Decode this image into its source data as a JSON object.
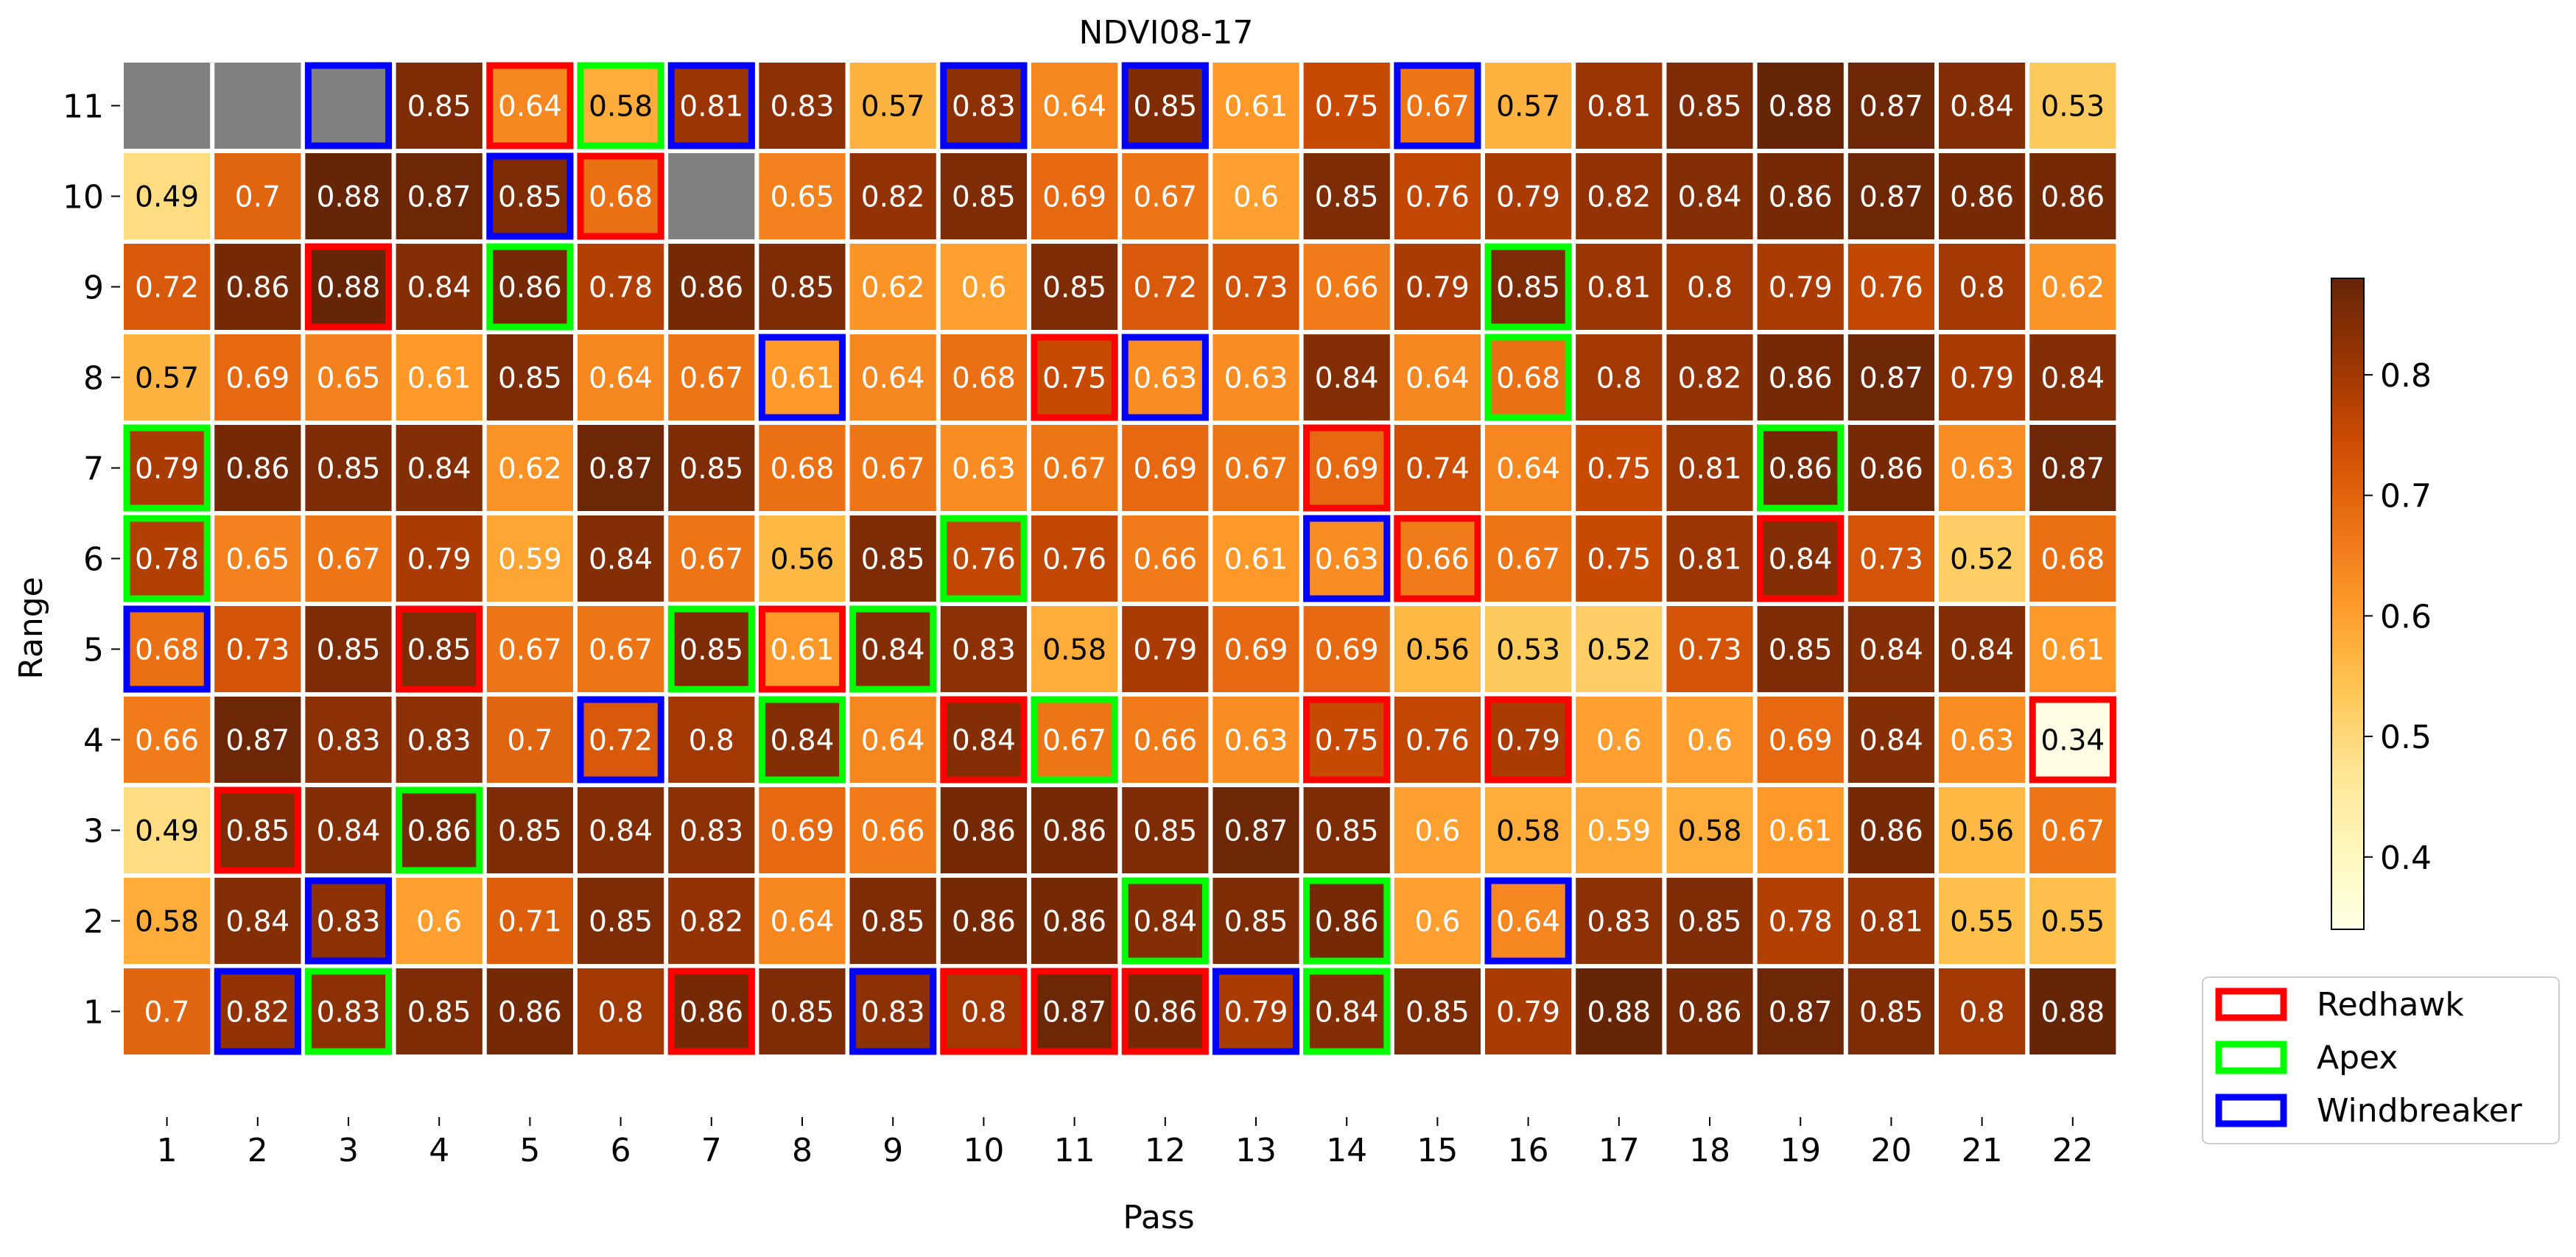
{
  "chart_data": {
    "type": "heatmap",
    "title": "NDVI08-17",
    "xlabel": "Pass",
    "ylabel": "Range",
    "x_ticks": [
      "1",
      "2",
      "3",
      "4",
      "5",
      "6",
      "7",
      "8",
      "9",
      "10",
      "11",
      "12",
      "13",
      "14",
      "15",
      "16",
      "17",
      "18",
      "19",
      "20",
      "21",
      "22"
    ],
    "y_ticks": [
      "1",
      "2",
      "3",
      "4",
      "5",
      "6",
      "7",
      "8",
      "9",
      "10",
      "11"
    ],
    "colorbar": {
      "ticks": [
        "0.4",
        "0.5",
        "0.6",
        "0.7",
        "0.8"
      ],
      "tick_values": [
        0.4,
        0.5,
        0.6,
        0.7,
        0.8
      ],
      "range": [
        0.34,
        0.88
      ],
      "colormap": "YlOrBr"
    },
    "missing_color": "#808080",
    "rows": [
      {
        "range": "11",
        "values": [
          null,
          null,
          null,
          0.85,
          0.64,
          0.58,
          0.81,
          0.83,
          0.57,
          0.83,
          0.64,
          0.85,
          0.61,
          0.75,
          0.67,
          0.57,
          0.81,
          0.85,
          0.88,
          0.87,
          0.84,
          0.53
        ],
        "labels": [
          "",
          "",
          "",
          "0.85",
          "0.64",
          "0.58",
          "0.81",
          "0.83",
          "0.57",
          "0.83",
          "0.64",
          "0.85",
          "0.61",
          "0.75",
          "0.67",
          "0.57",
          "0.81",
          "0.85",
          "0.88",
          "0.87",
          "0.84",
          "0.53"
        ]
      },
      {
        "range": "10",
        "values": [
          0.49,
          0.7,
          0.88,
          0.87,
          0.85,
          0.68,
          null,
          0.65,
          0.82,
          0.85,
          0.69,
          0.67,
          0.6,
          0.85,
          0.76,
          0.79,
          0.82,
          0.84,
          0.86,
          0.87,
          0.86,
          0.86
        ],
        "labels": [
          "0.49",
          "0.7",
          "0.88",
          "0.87",
          "0.85",
          "0.68",
          "",
          "0.65",
          "0.82",
          "0.85",
          "0.69",
          "0.67",
          "0.6",
          "0.85",
          "0.76",
          "0.79",
          "0.82",
          "0.84",
          "0.86",
          "0.87",
          "0.86",
          "0.86"
        ]
      },
      {
        "range": "9",
        "values": [
          0.72,
          0.86,
          0.88,
          0.84,
          0.86,
          0.78,
          0.86,
          0.85,
          0.62,
          0.6,
          0.85,
          0.72,
          0.73,
          0.66,
          0.79,
          0.85,
          0.81,
          0.8,
          0.79,
          0.76,
          0.8,
          0.62
        ],
        "labels": [
          "0.72",
          "0.86",
          "0.88",
          "0.84",
          "0.86",
          "0.78",
          "0.86",
          "0.85",
          "0.62",
          "0.6",
          "0.85",
          "0.72",
          "0.73",
          "0.66",
          "0.79",
          "0.85",
          "0.81",
          "0.8",
          "0.79",
          "0.76",
          "0.8",
          "0.62"
        ]
      },
      {
        "range": "8",
        "values": [
          0.57,
          0.69,
          0.65,
          0.61,
          0.85,
          0.64,
          0.67,
          0.61,
          0.64,
          0.68,
          0.75,
          0.63,
          0.63,
          0.84,
          0.64,
          0.68,
          0.8,
          0.82,
          0.86,
          0.87,
          0.79,
          0.84
        ],
        "labels": [
          "0.57",
          "0.69",
          "0.65",
          "0.61",
          "0.85",
          "0.64",
          "0.67",
          "0.61",
          "0.64",
          "0.68",
          "0.75",
          "0.63",
          "0.63",
          "0.84",
          "0.64",
          "0.68",
          "0.8",
          "0.82",
          "0.86",
          "0.87",
          "0.79",
          "0.84"
        ]
      },
      {
        "range": "7",
        "values": [
          0.79,
          0.86,
          0.85,
          0.84,
          0.62,
          0.87,
          0.85,
          0.68,
          0.67,
          0.63,
          0.67,
          0.69,
          0.67,
          0.69,
          0.74,
          0.64,
          0.75,
          0.81,
          0.86,
          0.86,
          0.63,
          0.87
        ],
        "labels": [
          "0.79",
          "0.86",
          "0.85",
          "0.84",
          "0.62",
          "0.87",
          "0.85",
          "0.68",
          "0.67",
          "0.63",
          "0.67",
          "0.69",
          "0.67",
          "0.69",
          "0.74",
          "0.64",
          "0.75",
          "0.81",
          "0.86",
          "0.86",
          "0.63",
          "0.87"
        ]
      },
      {
        "range": "6",
        "values": [
          0.78,
          0.65,
          0.67,
          0.79,
          0.59,
          0.84,
          0.67,
          0.56,
          0.85,
          0.76,
          0.76,
          0.66,
          0.61,
          0.63,
          0.66,
          0.67,
          0.75,
          0.81,
          0.84,
          0.73,
          0.52,
          0.68
        ],
        "labels": [
          "0.78",
          "0.65",
          "0.67",
          "0.79",
          "0.59",
          "0.84",
          "0.67",
          "0.56",
          "0.85",
          "0.76",
          "0.76",
          "0.66",
          "0.61",
          "0.63",
          "0.66",
          "0.67",
          "0.75",
          "0.81",
          "0.84",
          "0.73",
          "0.52",
          "0.68"
        ]
      },
      {
        "range": "5",
        "values": [
          0.68,
          0.73,
          0.85,
          0.85,
          0.67,
          0.67,
          0.85,
          0.61,
          0.84,
          0.83,
          0.58,
          0.79,
          0.69,
          0.69,
          0.56,
          0.53,
          0.52,
          0.73,
          0.85,
          0.84,
          0.84,
          0.61
        ],
        "labels": [
          "0.68",
          "0.73",
          "0.85",
          "0.85",
          "0.67",
          "0.67",
          "0.85",
          "0.61",
          "0.84",
          "0.83",
          "0.58",
          "0.79",
          "0.69",
          "0.69",
          "0.56",
          "0.53",
          "0.52",
          "0.73",
          "0.85",
          "0.84",
          "0.84",
          "0.61"
        ]
      },
      {
        "range": "4",
        "values": [
          0.66,
          0.87,
          0.83,
          0.83,
          0.7,
          0.72,
          0.8,
          0.84,
          0.64,
          0.84,
          0.67,
          0.66,
          0.63,
          0.75,
          0.76,
          0.79,
          0.6,
          0.6,
          0.69,
          0.84,
          0.63,
          0.34
        ],
        "labels": [
          "0.66",
          "0.87",
          "0.83",
          "0.83",
          "0.7",
          "0.72",
          "0.8",
          "0.84",
          "0.64",
          "0.84",
          "0.67",
          "0.66",
          "0.63",
          "0.75",
          "0.76",
          "0.79",
          "0.6",
          "0.6",
          "0.69",
          "0.84",
          "0.63",
          "0.34"
        ]
      },
      {
        "range": "3",
        "values": [
          0.49,
          0.85,
          0.84,
          0.86,
          0.85,
          0.84,
          0.83,
          0.69,
          0.66,
          0.86,
          0.86,
          0.85,
          0.87,
          0.85,
          0.6,
          0.58,
          0.59,
          0.58,
          0.61,
          0.86,
          0.56,
          0.67
        ],
        "labels": [
          "0.49",
          "0.85",
          "0.84",
          "0.86",
          "0.85",
          "0.84",
          "0.83",
          "0.69",
          "0.66",
          "0.86",
          "0.86",
          "0.85",
          "0.87",
          "0.85",
          "0.6",
          "0.58",
          "0.59",
          "0.58",
          "0.61",
          "0.86",
          "0.56",
          "0.67"
        ]
      },
      {
        "range": "2",
        "values": [
          0.58,
          0.84,
          0.83,
          0.6,
          0.71,
          0.85,
          0.82,
          0.64,
          0.85,
          0.86,
          0.86,
          0.84,
          0.85,
          0.86,
          0.6,
          0.64,
          0.83,
          0.85,
          0.78,
          0.81,
          0.55,
          0.55
        ],
        "labels": [
          "0.58",
          "0.84",
          "0.83",
          "0.6",
          "0.71",
          "0.85",
          "0.82",
          "0.64",
          "0.85",
          "0.86",
          "0.86",
          "0.84",
          "0.85",
          "0.86",
          "0.6",
          "0.64",
          "0.83",
          "0.85",
          "0.78",
          "0.81",
          "0.55",
          "0.55"
        ]
      },
      {
        "range": "1",
        "values": [
          0.7,
          0.82,
          0.83,
          0.85,
          0.86,
          0.8,
          0.86,
          0.85,
          0.83,
          0.8,
          0.87,
          0.86,
          0.79,
          0.84,
          0.85,
          0.79,
          0.88,
          0.86,
          0.87,
          0.85,
          0.8,
          0.88
        ],
        "labels": [
          "0.7",
          "0.82",
          "0.83",
          "0.85",
          "0.86",
          "0.8",
          "0.86",
          "0.85",
          "0.83",
          "0.8",
          "0.87",
          "0.86",
          "0.79",
          "0.84",
          "0.85",
          "0.79",
          "0.88",
          "0.86",
          "0.87",
          "0.85",
          "0.8",
          "0.88"
        ]
      }
    ],
    "legend": {
      "placement": "bottom-right",
      "entries": [
        {
          "name": "Redhawk",
          "color": "#ff0000"
        },
        {
          "name": "Apex",
          "color": "#00ff00"
        },
        {
          "name": "Windbreaker",
          "color": "#0000ff"
        }
      ]
    },
    "highlights": [
      {
        "range": "11",
        "pass": "3",
        "variety": "Windbreaker"
      },
      {
        "range": "11",
        "pass": "5",
        "variety": "Redhawk"
      },
      {
        "range": "11",
        "pass": "6",
        "variety": "Apex"
      },
      {
        "range": "11",
        "pass": "7",
        "variety": "Windbreaker"
      },
      {
        "range": "11",
        "pass": "10",
        "variety": "Windbreaker"
      },
      {
        "range": "11",
        "pass": "12",
        "variety": "Windbreaker"
      },
      {
        "range": "11",
        "pass": "15",
        "variety": "Windbreaker"
      },
      {
        "range": "10",
        "pass": "5",
        "variety": "Windbreaker"
      },
      {
        "range": "10",
        "pass": "6",
        "variety": "Redhawk"
      },
      {
        "range": "9",
        "pass": "3",
        "variety": "Redhawk"
      },
      {
        "range": "9",
        "pass": "5",
        "variety": "Apex"
      },
      {
        "range": "9",
        "pass": "16",
        "variety": "Apex"
      },
      {
        "range": "8",
        "pass": "8",
        "variety": "Windbreaker"
      },
      {
        "range": "8",
        "pass": "11",
        "variety": "Redhawk"
      },
      {
        "range": "8",
        "pass": "12",
        "variety": "Windbreaker"
      },
      {
        "range": "8",
        "pass": "16",
        "variety": "Apex"
      },
      {
        "range": "7",
        "pass": "1",
        "variety": "Apex"
      },
      {
        "range": "7",
        "pass": "14",
        "variety": "Redhawk"
      },
      {
        "range": "7",
        "pass": "19",
        "variety": "Apex"
      },
      {
        "range": "6",
        "pass": "1",
        "variety": "Apex"
      },
      {
        "range": "6",
        "pass": "10",
        "variety": "Apex"
      },
      {
        "range": "6",
        "pass": "14",
        "variety": "Windbreaker"
      },
      {
        "range": "6",
        "pass": "15",
        "variety": "Redhawk"
      },
      {
        "range": "6",
        "pass": "19",
        "variety": "Redhawk"
      },
      {
        "range": "5",
        "pass": "1",
        "variety": "Windbreaker"
      },
      {
        "range": "5",
        "pass": "4",
        "variety": "Redhawk"
      },
      {
        "range": "5",
        "pass": "7",
        "variety": "Apex"
      },
      {
        "range": "5",
        "pass": "8",
        "variety": "Redhawk"
      },
      {
        "range": "5",
        "pass": "9",
        "variety": "Apex"
      },
      {
        "range": "4",
        "pass": "6",
        "variety": "Windbreaker"
      },
      {
        "range": "4",
        "pass": "8",
        "variety": "Apex"
      },
      {
        "range": "4",
        "pass": "10",
        "variety": "Redhawk"
      },
      {
        "range": "4",
        "pass": "11",
        "variety": "Apex"
      },
      {
        "range": "4",
        "pass": "14",
        "variety": "Redhawk"
      },
      {
        "range": "4",
        "pass": "16",
        "variety": "Redhawk"
      },
      {
        "range": "4",
        "pass": "22",
        "variety": "Redhawk"
      },
      {
        "range": "3",
        "pass": "2",
        "variety": "Redhawk"
      },
      {
        "range": "3",
        "pass": "4",
        "variety": "Apex"
      },
      {
        "range": "2",
        "pass": "3",
        "variety": "Windbreaker"
      },
      {
        "range": "2",
        "pass": "12",
        "variety": "Apex"
      },
      {
        "range": "2",
        "pass": "14",
        "variety": "Apex"
      },
      {
        "range": "2",
        "pass": "16",
        "variety": "Windbreaker"
      },
      {
        "range": "1",
        "pass": "2",
        "variety": "Windbreaker"
      },
      {
        "range": "1",
        "pass": "3",
        "variety": "Apex"
      },
      {
        "range": "1",
        "pass": "7",
        "variety": "Redhawk"
      },
      {
        "range": "1",
        "pass": "9",
        "variety": "Windbreaker"
      },
      {
        "range": "1",
        "pass": "10",
        "variety": "Redhawk"
      },
      {
        "range": "1",
        "pass": "11",
        "variety": "Redhawk"
      },
      {
        "range": "1",
        "pass": "12",
        "variety": "Redhawk"
      },
      {
        "range": "1",
        "pass": "13",
        "variety": "Windbreaker"
      },
      {
        "range": "1",
        "pass": "14",
        "variety": "Apex"
      }
    ]
  }
}
